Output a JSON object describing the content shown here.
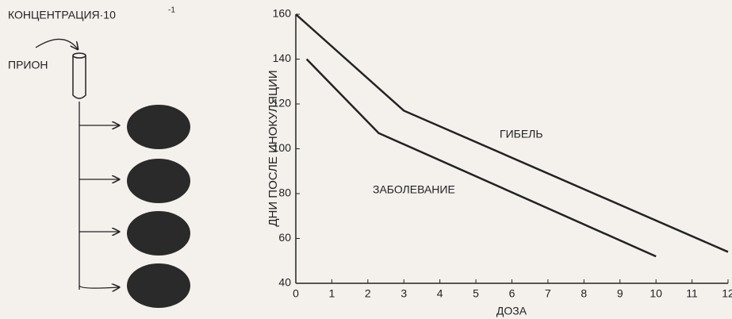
{
  "diagram": {
    "concentration_label": "КОНЦЕНТРАЦИЯ·10",
    "concentration_exponent": "-1",
    "prion_label": "ПРИОН"
  },
  "chart_data": {
    "type": "line",
    "x_label": "ДОЗА",
    "y_label": "ДНИ ПОСЛЕ ИНОКУЛЯЦИИ",
    "xlim": [
      0,
      12
    ],
    "xticks": [
      0,
      1,
      2,
      3,
      4,
      5,
      6,
      7,
      8,
      9,
      10,
      11,
      12
    ],
    "ylim": [
      40,
      160
    ],
    "yticks": [
      40,
      60,
      80,
      100,
      120,
      140,
      160
    ],
    "series": [
      {
        "name": "ГИБЕЛЬ",
        "color": "#222222",
        "x": [
          0,
          3,
          12
        ],
        "values": [
          160,
          117,
          54
        ]
      },
      {
        "name": "ЗАБОЛЕВАНИЕ",
        "color": "#222222",
        "x": [
          0.3,
          2.3,
          10
        ],
        "values": [
          140,
          107,
          52
        ]
      }
    ]
  }
}
